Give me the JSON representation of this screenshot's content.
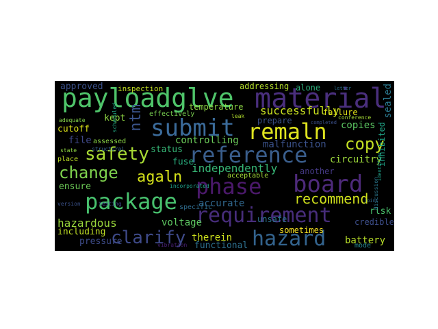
{
  "word_cloud": {
    "background": "#000000",
    "words": [
      {
        "text": "payloadglve",
        "color": "#4fc46a"
      },
      {
        "text": "material",
        "color": "#4a2f7d"
      },
      {
        "text": "submit",
        "color": "#3b6b9a"
      },
      {
        "text": "remaln",
        "color": "#dfe41f"
      },
      {
        "text": "reference",
        "color": "#3a5e8c"
      },
      {
        "text": "board",
        "color": "#4e2a7b"
      },
      {
        "text": "phase",
        "color": "#4b196b"
      },
      {
        "text": "package",
        "color": "#48c16e"
      },
      {
        "text": "requirement",
        "color": "#472d7b"
      },
      {
        "text": "hazard",
        "color": "#33638d"
      },
      {
        "text": "clarify",
        "color": "#3e4a89"
      },
      {
        "text": "safety",
        "color": "#a8db34"
      },
      {
        "text": "change",
        "color": "#7fd34e"
      },
      {
        "text": "agaln",
        "color": "#d5e21a"
      },
      {
        "text": "copy",
        "color": "#c2df23"
      },
      {
        "text": "recommend",
        "color": "#d0e11c"
      },
      {
        "text": "ntm",
        "color": "#3a548c"
      },
      {
        "text": "independently",
        "color": "#38b977"
      },
      {
        "text": "successfully",
        "color": "#c8e020"
      },
      {
        "text": "hazardous",
        "color": "#9bd93c"
      },
      {
        "text": "copies",
        "color": "#5cc863"
      },
      {
        "text": "circuitry",
        "color": "#9dd93b"
      },
      {
        "text": "controlling",
        "color": "#6ccd5a"
      },
      {
        "text": "malfunction",
        "color": "#3b528b"
      },
      {
        "text": "accurate",
        "color": "#31688e"
      },
      {
        "text": "sealed",
        "color": "#2a788e"
      },
      {
        "text": "temperature",
        "color": "#8ed645"
      },
      {
        "text": "addressing",
        "color": "#b5de2b"
      },
      {
        "text": "voltage",
        "color": "#5ec962"
      },
      {
        "text": "battery",
        "color": "#b8de29"
      },
      {
        "text": "therein",
        "color": "#cde11d"
      },
      {
        "text": "pressure",
        "color": "#3e4c8a"
      },
      {
        "text": "including",
        "color": "#c0df25"
      },
      {
        "text": "ensure",
        "color": "#6ece58"
      },
      {
        "text": "kept",
        "color": "#90d743"
      },
      {
        "text": "file",
        "color": "#3f4889"
      },
      {
        "text": "cutoff",
        "color": "#dde318"
      },
      {
        "text": "status",
        "color": "#37b878"
      },
      {
        "text": "fuse",
        "color": "#29af7f"
      },
      {
        "text": "functional",
        "color": "#2d708e"
      },
      {
        "text": "sometimes",
        "color": "#fde725"
      },
      {
        "text": "another",
        "color": "#443983"
      },
      {
        "text": "failure",
        "color": "#e2e418"
      },
      {
        "text": "approved",
        "color": "#3b518b"
      },
      {
        "text": "inspection",
        "color": "#c2df23"
      },
      {
        "text": "credible",
        "color": "#3d4e8a"
      },
      {
        "text": "inhibited",
        "color": "#20a386"
      },
      {
        "text": "alone",
        "color": "#2db27d"
      },
      {
        "text": "prepare",
        "color": "#3b528b"
      },
      {
        "text": "unsafe",
        "color": "#2c738e"
      },
      {
        "text": "rlsk",
        "color": "#4ac16d"
      },
      {
        "text": "mode",
        "color": "#25858e"
      },
      {
        "text": "acceptable",
        "color": "#a2da37"
      },
      {
        "text": "assessed",
        "color": "#8bd646"
      },
      {
        "text": "place",
        "color": "#bddf26"
      },
      {
        "text": "specific",
        "color": "#2f6c8e"
      },
      {
        "text": "effectively",
        "color": "#7ad151"
      },
      {
        "text": "scheduled",
        "color": "#22a884"
      },
      {
        "text": "testing",
        "color": "#3f4788"
      },
      {
        "text": "adequate",
        "color": "#84d44b"
      },
      {
        "text": "conference",
        "color": "#a5db36"
      },
      {
        "text": "discussion",
        "color": "#2a778e"
      },
      {
        "text": "vibration",
        "color": "#482173"
      },
      {
        "text": "state",
        "color": "#90d743"
      },
      {
        "text": "structural",
        "color": "#34608d"
      },
      {
        "text": "incorporated",
        "color": "#1f9e89"
      },
      {
        "text": "leak",
        "color": "#b2dd2d"
      },
      {
        "text": "completed",
        "color": "#3c508b"
      },
      {
        "text": "letter",
        "color": "#2c718e"
      },
      {
        "text": "version",
        "color": "#3b528b"
      },
      {
        "text": "joint",
        "color": "#31668e"
      },
      {
        "text": "identifies",
        "color": "#1fa088"
      }
    ]
  }
}
